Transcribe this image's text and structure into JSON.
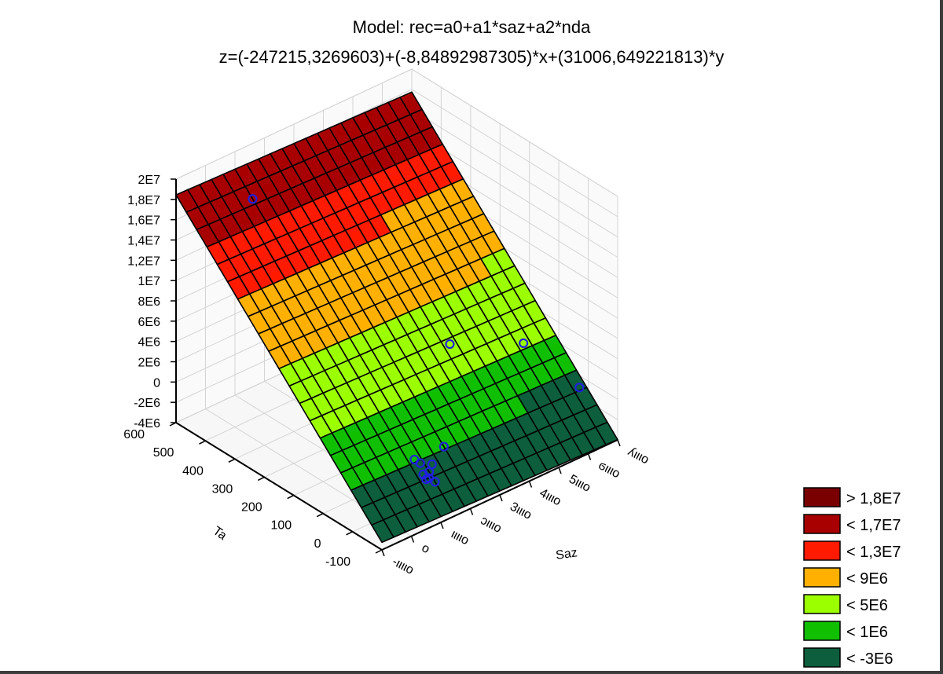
{
  "chart_data": {
    "type": "surface3d",
    "title": "Model: rec=a0+a1*saz+a2*nda",
    "subtitle": "z=(-247215,3269603)+(-8,84892987305)*x+(31006,649221813)*y",
    "model": {
      "a0": -247215.3269603,
      "a1": -8.84892987305,
      "a2": 31006.649221813
    },
    "xlabel": "Saz",
    "ylabel": "Ta",
    "zlabel": "",
    "z_ticks": [
      "-4E6",
      "-2E6",
      "0",
      "2E6",
      "4E6",
      "6E6",
      "8E6",
      "1E7",
      "1,2E7",
      "1,4E7",
      "1,6E7",
      "1,8E7",
      "2E7"
    ],
    "y_ticks": [
      "-100",
      "0",
      "100",
      "200",
      "300",
      "400",
      "500",
      "600"
    ],
    "x_ticks": [
      "-10000",
      "0",
      "10000",
      "20000",
      "30000",
      "40000",
      "50000",
      "60000",
      "70000"
    ],
    "x_ticks_display": [
      "-ιιιιο",
      "ο",
      "ιιιιο",
      "ͻιιιο",
      "3ιιιο",
      "4ιιιο",
      "5ιιιο",
      "ϭιιιο",
      "ʎιιιο"
    ],
    "legend": [
      {
        "label": "> 1,8E7",
        "color": "#7a0000"
      },
      {
        "label": "< 1,7E7",
        "color": "#a80000"
      },
      {
        "label": "< 1,3E7",
        "color": "#ff1a00"
      },
      {
        "label": "< 9E6",
        "color": "#ffb000"
      },
      {
        "label": "< 5E6",
        "color": "#9cff00"
      },
      {
        "label": "< 1E6",
        "color": "#10c000"
      },
      {
        "label": "< -3E6",
        "color": "#0c5e3c"
      }
    ],
    "points_color": "#2020e0",
    "points": [
      {
        "x": 10000,
        "y": 540
      },
      {
        "x": 40000,
        "y": 170
      },
      {
        "x": 60000,
        "y": 120
      },
      {
        "x": 68000,
        "y": 10
      },
      {
        "x": 12000,
        "y": 10
      },
      {
        "x": 13000,
        "y": 0
      },
      {
        "x": 12000,
        "y": -20
      },
      {
        "x": 13000,
        "y": -30
      },
      {
        "x": 14000,
        "y": -40
      },
      {
        "x": 16000,
        "y": -10
      },
      {
        "x": 22000,
        "y": 10
      },
      {
        "x": 12000,
        "y": -30
      },
      {
        "x": 14000,
        "y": -20
      }
    ]
  }
}
